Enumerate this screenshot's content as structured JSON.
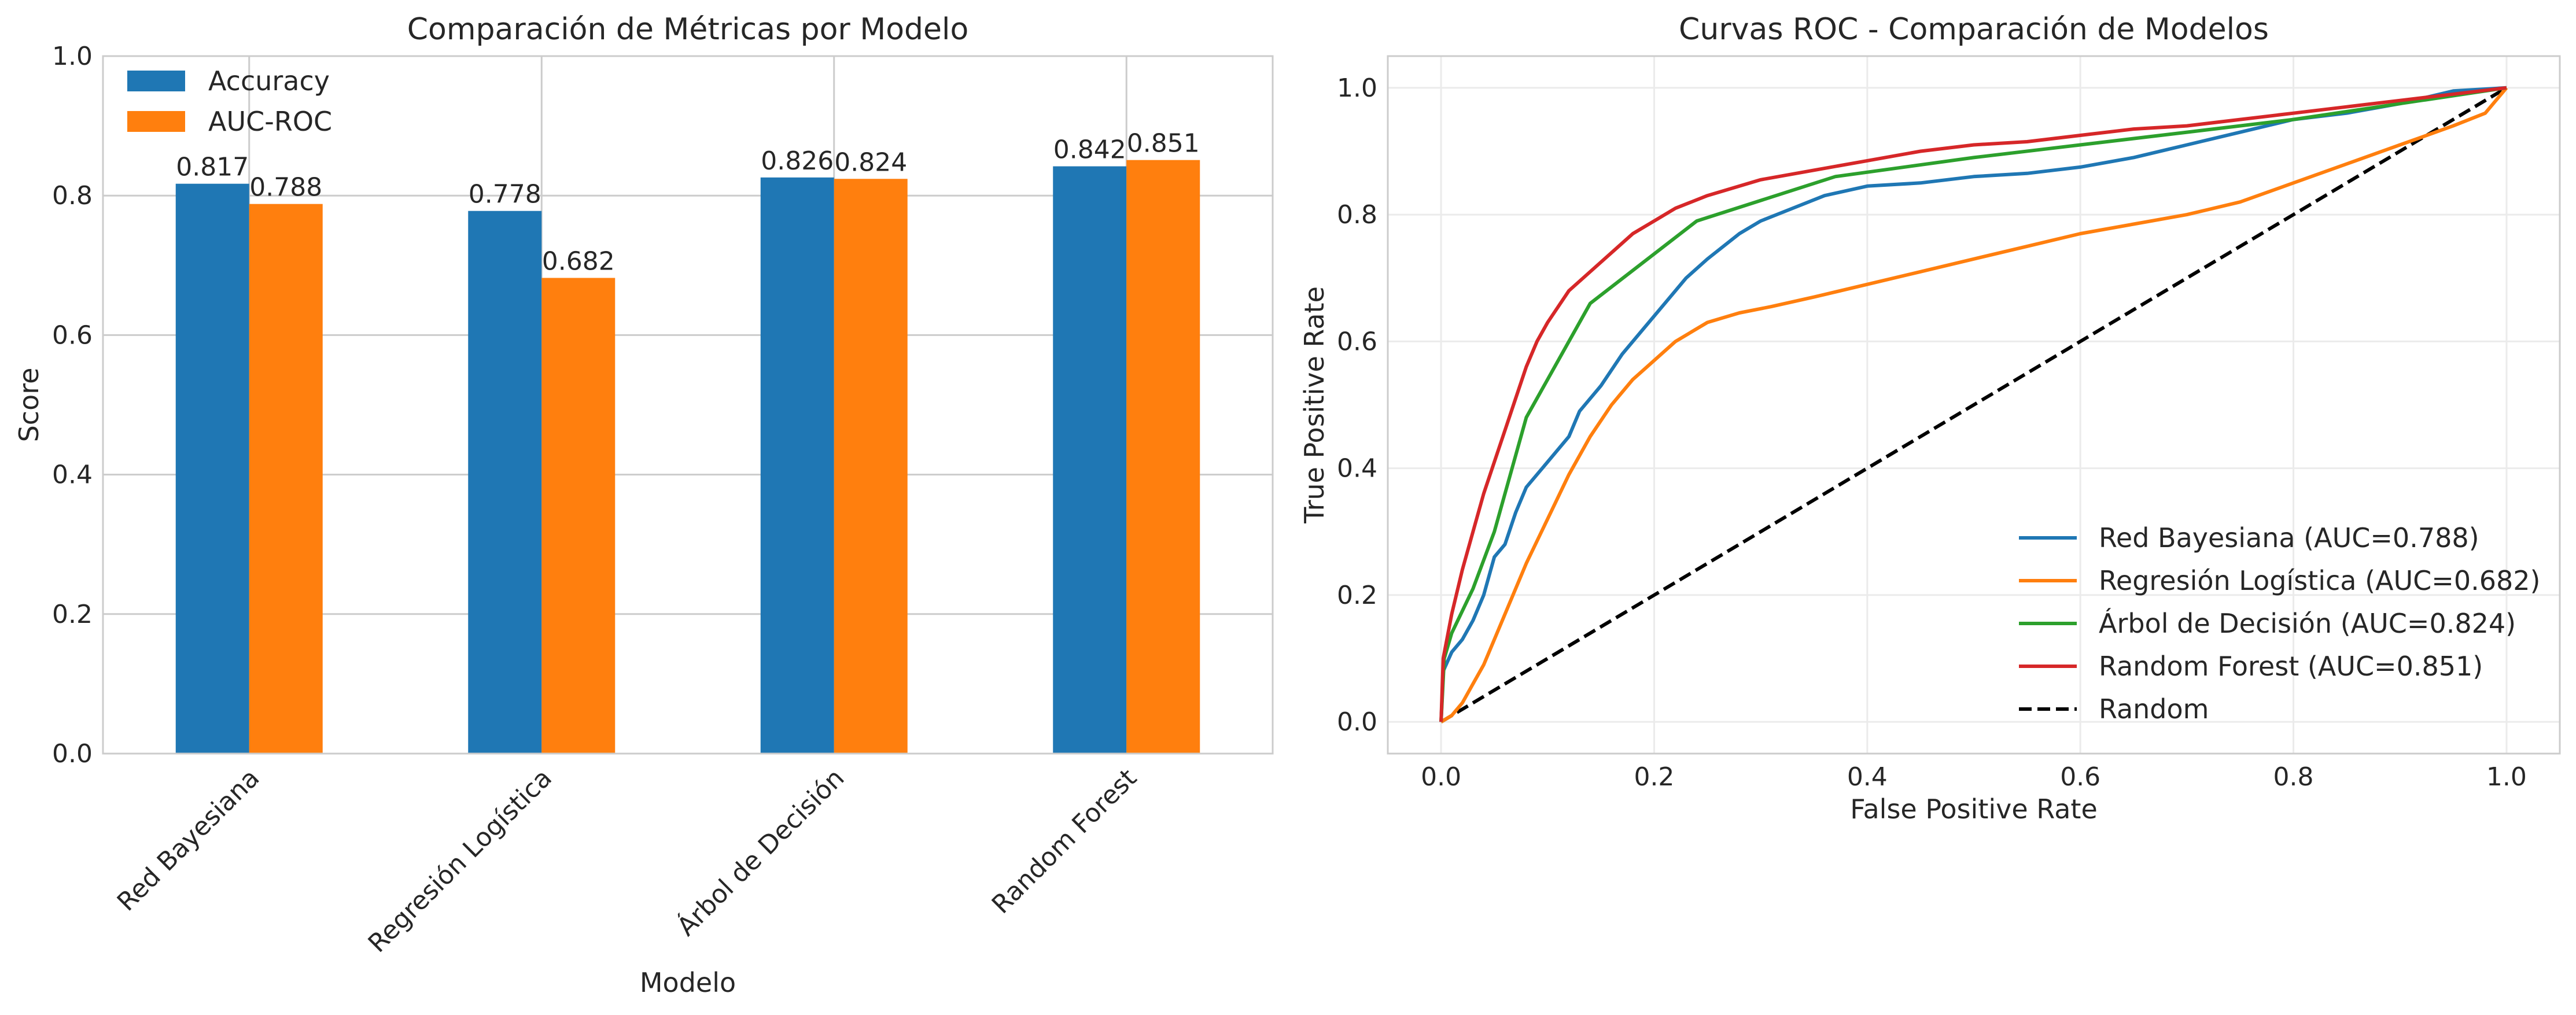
{
  "chart_data": [
    {
      "type": "bar",
      "title": "Comparación de Métricas por Modelo",
      "xlabel": "Modelo",
      "ylabel": "Score",
      "ylim": [
        0,
        1.0
      ],
      "yticks": [
        0.0,
        0.2,
        0.4,
        0.6,
        0.8,
        1.0
      ],
      "ytick_labels": [
        "0.0",
        "0.2",
        "0.4",
        "0.6",
        "0.8",
        "1.0"
      ],
      "grid": true,
      "legend_position": "top-left",
      "categories": [
        "Red Bayesiana",
        "Regresión Logística",
        "Árbol de Decisión",
        "Random Forest"
      ],
      "series": [
        {
          "name": "Accuracy",
          "color": "#1f77b4",
          "values": [
            0.817,
            0.778,
            0.826,
            0.842
          ],
          "labels": [
            "0.817",
            "0.778",
            "0.826",
            "0.842"
          ]
        },
        {
          "name": "AUC-ROC",
          "color": "#ff7f0e",
          "values": [
            0.788,
            0.682,
            0.824,
            0.851
          ],
          "labels": [
            "0.788",
            "0.682",
            "0.824",
            "0.851"
          ]
        }
      ]
    },
    {
      "type": "line",
      "title": "Curvas ROC - Comparación de Modelos",
      "xlabel": "False Positive Rate",
      "ylabel": "True Positive Rate",
      "xlim": [
        -0.05,
        1.05
      ],
      "ylim": [
        -0.05,
        1.05
      ],
      "xticks": [
        0.0,
        0.2,
        0.4,
        0.6,
        0.8,
        1.0
      ],
      "xtick_labels": [
        "0.0",
        "0.2",
        "0.4",
        "0.6",
        "0.8",
        "1.0"
      ],
      "yticks": [
        0.0,
        0.2,
        0.4,
        0.6,
        0.8,
        1.0
      ],
      "ytick_labels": [
        "0.0",
        "0.2",
        "0.4",
        "0.6",
        "0.8",
        "1.0"
      ],
      "grid": true,
      "legend_position": "lower-right",
      "series": [
        {
          "name": "Red Bayesiana (AUC=0.788)",
          "color": "#1f77b4",
          "dash": "solid",
          "points": [
            [
              0,
              0
            ],
            [
              0.002,
              0.08
            ],
            [
              0.01,
              0.11
            ],
            [
              0.02,
              0.13
            ],
            [
              0.03,
              0.16
            ],
            [
              0.04,
              0.2
            ],
            [
              0.05,
              0.26
            ],
            [
              0.06,
              0.28
            ],
            [
              0.07,
              0.33
            ],
            [
              0.08,
              0.37
            ],
            [
              0.1,
              0.41
            ],
            [
              0.12,
              0.45
            ],
            [
              0.13,
              0.49
            ],
            [
              0.15,
              0.53
            ],
            [
              0.17,
              0.58
            ],
            [
              0.19,
              0.62
            ],
            [
              0.21,
              0.66
            ],
            [
              0.23,
              0.7
            ],
            [
              0.25,
              0.73
            ],
            [
              0.28,
              0.77
            ],
            [
              0.3,
              0.79
            ],
            [
              0.33,
              0.81
            ],
            [
              0.36,
              0.83
            ],
            [
              0.4,
              0.845
            ],
            [
              0.45,
              0.85
            ],
            [
              0.5,
              0.86
            ],
            [
              0.55,
              0.865
            ],
            [
              0.6,
              0.875
            ],
            [
              0.65,
              0.89
            ],
            [
              0.7,
              0.91
            ],
            [
              0.75,
              0.93
            ],
            [
              0.8,
              0.95
            ],
            [
              0.85,
              0.96
            ],
            [
              0.9,
              0.975
            ],
            [
              0.95,
              0.995
            ],
            [
              1.0,
              1.0
            ]
          ]
        },
        {
          "name": "Regresión Logística (AUC=0.682)",
          "color": "#ff7f0e",
          "dash": "solid",
          "points": [
            [
              0,
              0
            ],
            [
              0.01,
              0.01
            ],
            [
              0.02,
              0.03
            ],
            [
              0.03,
              0.06
            ],
            [
              0.04,
              0.09
            ],
            [
              0.05,
              0.13
            ],
            [
              0.06,
              0.17
            ],
            [
              0.08,
              0.25
            ],
            [
              0.1,
              0.32
            ],
            [
              0.12,
              0.39
            ],
            [
              0.14,
              0.45
            ],
            [
              0.16,
              0.5
            ],
            [
              0.18,
              0.54
            ],
            [
              0.2,
              0.57
            ],
            [
              0.22,
              0.6
            ],
            [
              0.25,
              0.63
            ],
            [
              0.28,
              0.645
            ],
            [
              0.31,
              0.655
            ],
            [
              0.35,
              0.67
            ],
            [
              0.4,
              0.69
            ],
            [
              0.45,
              0.71
            ],
            [
              0.5,
              0.73
            ],
            [
              0.55,
              0.75
            ],
            [
              0.6,
              0.77
            ],
            [
              0.65,
              0.785
            ],
            [
              0.7,
              0.8
            ],
            [
              0.75,
              0.82
            ],
            [
              0.8,
              0.85
            ],
            [
              0.85,
              0.88
            ],
            [
              0.9,
              0.91
            ],
            [
              0.95,
              0.94
            ],
            [
              0.98,
              0.96
            ],
            [
              1.0,
              1.0
            ]
          ]
        },
        {
          "name": "Árbol de Decisión (AUC=0.824)",
          "color": "#2ca02c",
          "dash": "solid",
          "points": [
            [
              0,
              0
            ],
            [
              0.003,
              0.1
            ],
            [
              0.01,
              0.14
            ],
            [
              0.03,
              0.21
            ],
            [
              0.05,
              0.3
            ],
            [
              0.08,
              0.48
            ],
            [
              0.14,
              0.66
            ],
            [
              0.24,
              0.79
            ],
            [
              0.37,
              0.86
            ],
            [
              0.5,
              0.89
            ],
            [
              0.6,
              0.91
            ],
            [
              0.7,
              0.93
            ],
            [
              0.8,
              0.95
            ],
            [
              0.9,
              0.975
            ],
            [
              1.0,
              1.0
            ]
          ]
        },
        {
          "name": "Random Forest (AUC=0.851)",
          "color": "#d62728",
          "dash": "solid",
          "points": [
            [
              0,
              0
            ],
            [
              0.002,
              0.1
            ],
            [
              0.01,
              0.17
            ],
            [
              0.02,
              0.24
            ],
            [
              0.03,
              0.3
            ],
            [
              0.04,
              0.36
            ],
            [
              0.05,
              0.41
            ],
            [
              0.06,
              0.46
            ],
            [
              0.07,
              0.51
            ],
            [
              0.08,
              0.56
            ],
            [
              0.09,
              0.6
            ],
            [
              0.1,
              0.63
            ],
            [
              0.12,
              0.68
            ],
            [
              0.14,
              0.71
            ],
            [
              0.16,
              0.74
            ],
            [
              0.18,
              0.77
            ],
            [
              0.2,
              0.79
            ],
            [
              0.22,
              0.81
            ],
            [
              0.25,
              0.83
            ],
            [
              0.28,
              0.845
            ],
            [
              0.3,
              0.855
            ],
            [
              0.35,
              0.87
            ],
            [
              0.4,
              0.885
            ],
            [
              0.45,
              0.9
            ],
            [
              0.5,
              0.91
            ],
            [
              0.55,
              0.915
            ],
            [
              0.6,
              0.925
            ],
            [
              0.65,
              0.935
            ],
            [
              0.7,
              0.94
            ],
            [
              0.75,
              0.95
            ],
            [
              0.8,
              0.96
            ],
            [
              0.85,
              0.97
            ],
            [
              0.9,
              0.98
            ],
            [
              0.95,
              0.99
            ],
            [
              1.0,
              1.0
            ]
          ]
        },
        {
          "name": "Random",
          "color": "#000000",
          "dash": "dashed",
          "points": [
            [
              0,
              0
            ],
            [
              1,
              1
            ]
          ]
        }
      ]
    }
  ]
}
